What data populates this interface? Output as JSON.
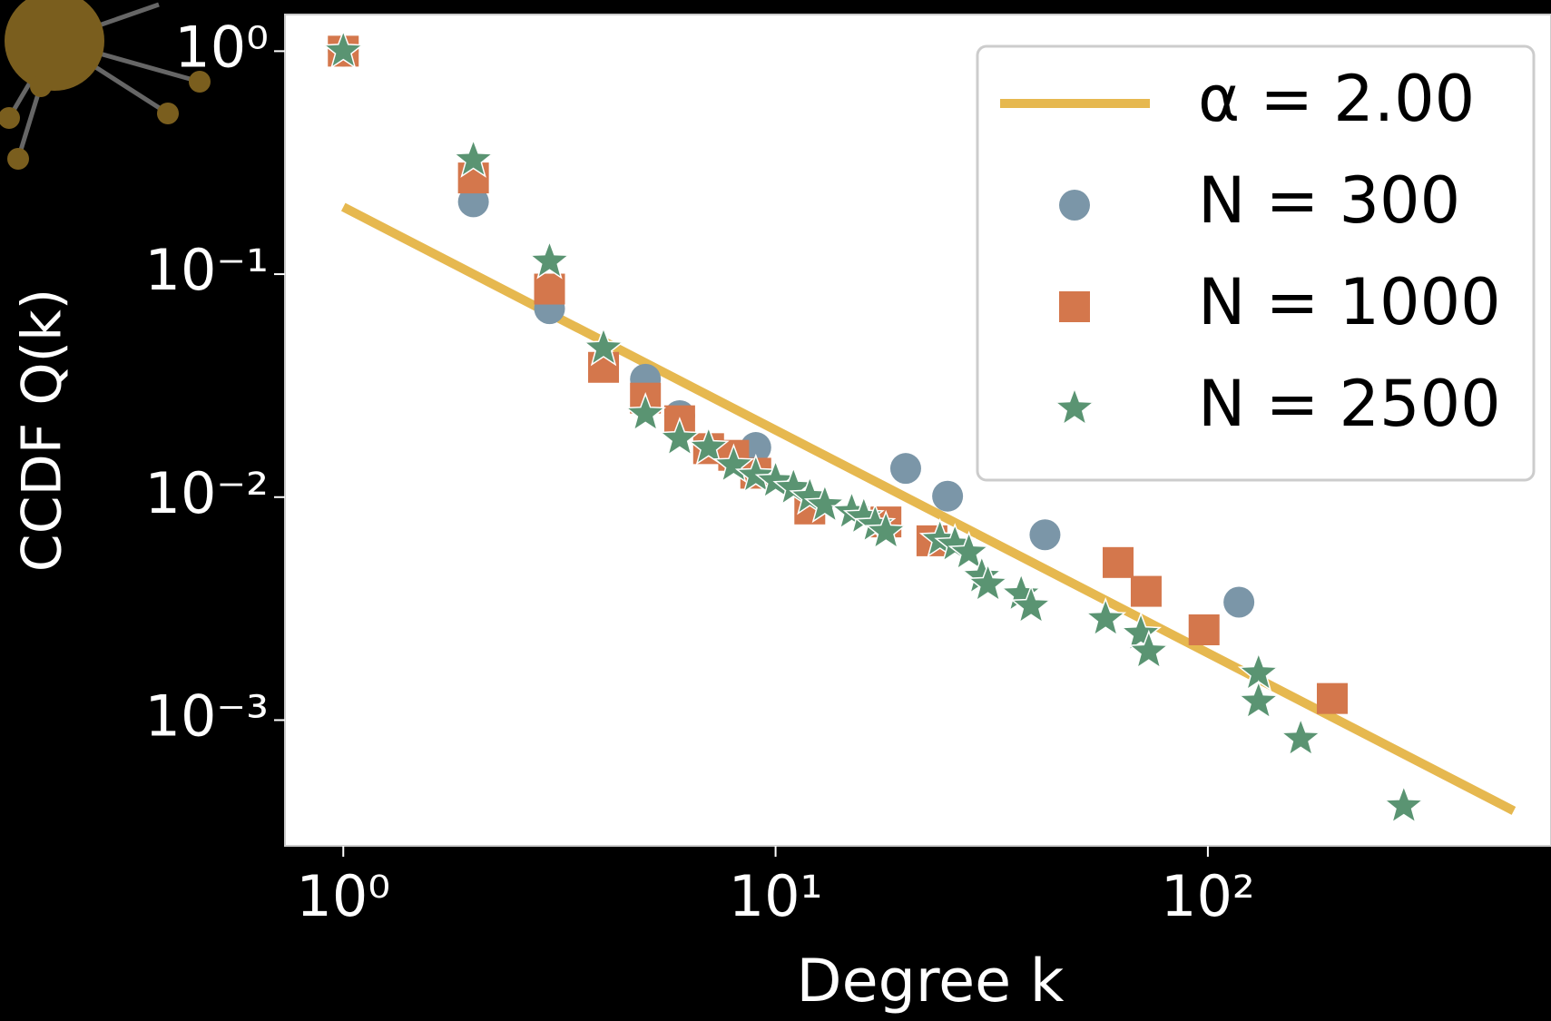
{
  "chart_data": {
    "type": "scatter",
    "xlabel": "Degree k",
    "ylabel": "CCDF Q(k)",
    "xscale": "log",
    "yscale": "log",
    "xlim": [
      0.733,
      622
    ],
    "ylim": [
      1.46,
      0.000273
    ],
    "xticks": [
      {
        "value": 1,
        "label": "10⁰"
      },
      {
        "value": 10,
        "label": "10¹"
      },
      {
        "value": 100,
        "label": "10²"
      }
    ],
    "yticks": [
      {
        "value": 1,
        "label": "10⁰"
      },
      {
        "value": 0.1,
        "label": "10⁻¹"
      },
      {
        "value": 0.01,
        "label": "10⁻²"
      },
      {
        "value": 0.001,
        "label": "10⁻³"
      }
    ],
    "legend": "upper right",
    "series": [
      {
        "name": "α = 2.00",
        "marker": "line",
        "color": "#e6b84f",
        "x": [
          1,
          510
        ],
        "values": [
          0.2,
          0.000392
        ]
      },
      {
        "name": "N = 300",
        "marker": "circle",
        "color": "#7b96a8",
        "x": [
          1,
          2,
          3,
          5,
          6,
          9,
          20,
          25,
          42,
          118
        ],
        "values": [
          1.0,
          0.211,
          0.07,
          0.0338,
          0.0232,
          0.0167,
          0.01345,
          0.0101,
          0.00678,
          0.00338
        ]
      },
      {
        "name": "N = 1000",
        "marker": "square",
        "color": "#d4774c",
        "x": [
          1,
          2,
          3,
          4,
          5,
          6,
          7,
          8,
          9,
          12,
          18,
          23,
          62,
          72,
          98,
          194
        ],
        "values": [
          1.0,
          0.27,
          0.0857,
          0.0382,
          0.0278,
          0.022,
          0.0165,
          0.0154,
          0.0128,
          0.00885,
          0.00774,
          0.00637,
          0.00509,
          0.00378,
          0.00254,
          0.00125
        ]
      },
      {
        "name": "N = 2500",
        "marker": "star",
        "color": "#5a9472",
        "x": [
          1,
          2,
          3,
          4,
          5,
          6,
          7,
          8,
          9,
          10,
          11,
          12,
          13,
          15,
          16,
          17,
          18,
          24,
          26,
          28,
          30,
          31,
          37,
          39,
          58,
          70,
          73,
          131,
          131,
          164,
          284
        ],
        "values": [
          1.0,
          0.325,
          0.114,
          0.0465,
          0.0236,
          0.0183,
          0.0167,
          0.0139,
          0.0125,
          0.0118,
          0.011,
          0.01,
          0.0092,
          0.00857,
          0.00814,
          0.0075,
          0.00699,
          0.00644,
          0.00612,
          0.00564,
          0.0044,
          0.00406,
          0.00367,
          0.00324,
          0.00284,
          0.00244,
          0.00203,
          0.00162,
          0.00121,
          0.000824,
          0.000411
        ]
      }
    ]
  }
}
